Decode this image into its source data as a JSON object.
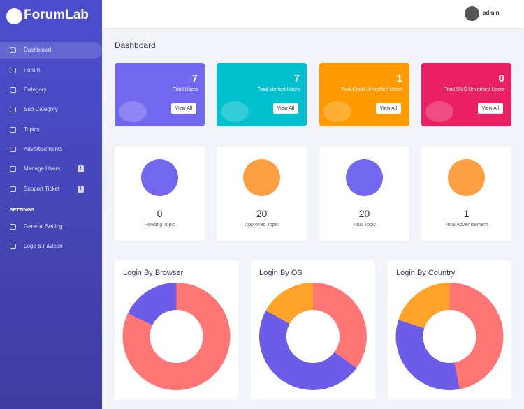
{
  "brand": "ForumLab",
  "sidebar": {
    "menu": [
      {
        "label": "Dashboard"
      },
      {
        "label": "Forum"
      },
      {
        "label": "Category"
      },
      {
        "label": "Sub Category"
      },
      {
        "label": "Topics"
      },
      {
        "label": "Advertisements"
      },
      {
        "label": "Manage Users",
        "badge": "!"
      },
      {
        "label": "Support Ticket",
        "badge": "!"
      }
    ],
    "section": "SETTINGS",
    "settings": [
      {
        "label": "General Setting"
      },
      {
        "label": "Logo & Favicon"
      }
    ]
  },
  "header": {
    "user": "admin"
  },
  "page_title": "Dashboard",
  "stat_cards": [
    {
      "value": 7,
      "label": "Total Users",
      "button": "View All",
      "color": "#7367f0"
    },
    {
      "value": 7,
      "label": "Total Verified Users",
      "button": "View All",
      "color": "#00c0cf"
    },
    {
      "value": 1,
      "label": "Total Email Unverified Users",
      "button": "View All",
      "color": "#ff9b00"
    },
    {
      "value": 0,
      "label": "Total SMS Unverified Users",
      "button": "View All",
      "color": "#ea2064"
    }
  ],
  "topic_cards": [
    {
      "value": 0,
      "label": "Pending Topic",
      "color": "#7367f0"
    },
    {
      "value": 20,
      "label": "Approved Topic",
      "color": "#ff9f43"
    },
    {
      "value": 20,
      "label": "Total Topic",
      "color": "#7367f0"
    },
    {
      "value": 1,
      "label": "Total Advertisement",
      "color": "#ff9f43"
    }
  ],
  "charts": [
    {
      "type": "pie",
      "title": "Login By Browser",
      "values": [
        82,
        18
      ],
      "colors": [
        "#ff7675",
        "#6c5ce7"
      ]
    },
    {
      "type": "pie",
      "title": "Login By OS",
      "values": [
        35,
        48,
        17
      ],
      "colors": [
        "#ff7675",
        "#6c5ce7",
        "#ffa32b"
      ]
    },
    {
      "type": "pie",
      "title": "Login By Country",
      "values": [
        47,
        33,
        20
      ],
      "colors": [
        "#ff7675",
        "#6c5ce7",
        "#ffa32b"
      ]
    }
  ]
}
